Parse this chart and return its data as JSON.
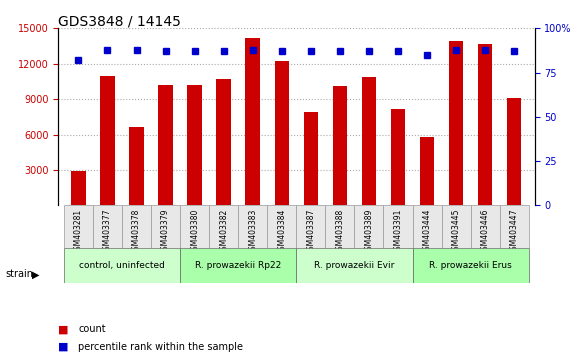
{
  "title": "GDS3848 / 14145",
  "samples": [
    "GSM403281",
    "GSM403377",
    "GSM403378",
    "GSM403379",
    "GSM403380",
    "GSM403382",
    "GSM403383",
    "GSM403384",
    "GSM403387",
    "GSM403388",
    "GSM403389",
    "GSM403391",
    "GSM403444",
    "GSM403445",
    "GSM403446",
    "GSM403447"
  ],
  "counts": [
    2900,
    11000,
    6600,
    10200,
    10200,
    10700,
    14200,
    12200,
    7900,
    10100,
    10900,
    8200,
    5800,
    13900,
    13700,
    9100
  ],
  "percentiles": [
    82,
    88,
    88,
    87,
    87,
    87,
    88,
    87,
    87,
    87,
    87,
    87,
    85,
    88,
    88,
    87
  ],
  "percentile_scale": 100,
  "ylim_left": [
    0,
    15000
  ],
  "ylim_right": [
    0,
    100
  ],
  "yticks_left": [
    3000,
    6000,
    9000,
    12000,
    15000
  ],
  "yticks_right": [
    0,
    25,
    50,
    75,
    100
  ],
  "groups": [
    {
      "label": "control, uninfected",
      "start": 0,
      "end": 4,
      "color": "#aaffaa"
    },
    {
      "label": "R. prowazekii Rp22",
      "start": 4,
      "end": 8,
      "color": "#aaffaa"
    },
    {
      "label": "R. prowazekii Evir",
      "start": 8,
      "end": 12,
      "color": "#aaffaa"
    },
    {
      "label": "R. prowazekii Erus",
      "start": 12,
      "end": 16,
      "color": "#aaffaa"
    }
  ],
  "bar_color": "#cc0000",
  "dot_color": "#0000cc",
  "grid_color": "#aaaaaa",
  "background_color": "#ffffff",
  "strain_label": "strain",
  "legend_count_label": "count",
  "legend_percentile_label": "percentile rank within the sample"
}
